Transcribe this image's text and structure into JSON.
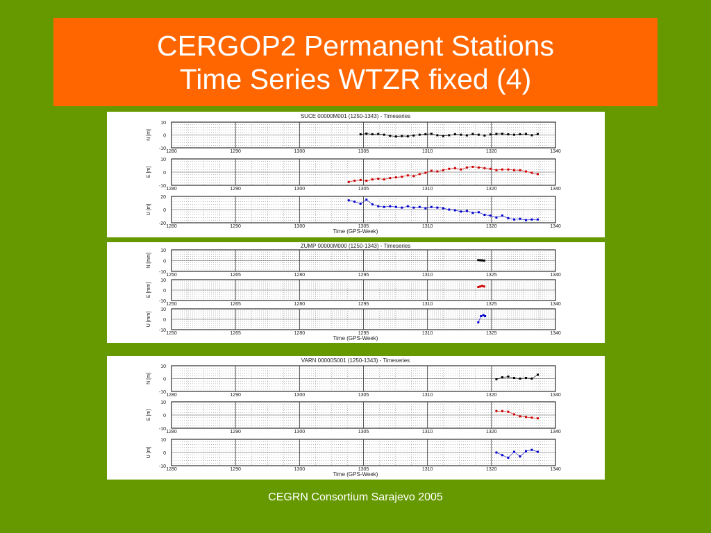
{
  "slide": {
    "title_line1": "CERGOP2 Permanent Stations",
    "title_line2": "Time Series WTZR fixed (4)",
    "footer": "CEGRN Consortium Sarajevo 2005"
  },
  "colors": {
    "background": "#669900",
    "title_box": "#FF6600",
    "north": "#000000",
    "east": "#cc0000",
    "up": "#0000cc"
  },
  "chart_data": [
    {
      "type": "scatter",
      "title": "SUCE 00000M001 (1250-1343) - Timeseries",
      "xlabel": "Time (GPS-Week)",
      "xlim": [
        1280,
        1345
      ],
      "xticks": [
        "1280",
        "1290",
        "1300",
        "1305",
        "1310",
        "1320",
        "1340"
      ],
      "panels": [
        {
          "ylabel": "N [m]",
          "ylim": [
            -10,
            10
          ],
          "yticks": [
            "10",
            "0",
            "-10"
          ],
          "series": [
            {
              "color": "#000000",
              "points": [
                [
                  1312,
                  0.5
                ],
                [
                  1313,
                  1
                ],
                [
                  1314,
                  0.6
                ],
                [
                  1315,
                  0.8
                ],
                [
                  1316,
                  0.2
                ],
                [
                  1317,
                  -0.6
                ],
                [
                  1318,
                  -1.2
                ],
                [
                  1319,
                  -0.8
                ],
                [
                  1320,
                  -1
                ],
                [
                  1321,
                  -0.4
                ],
                [
                  1322,
                  0.2
                ],
                [
                  1323,
                  0.6
                ],
                [
                  1324,
                  0.9
                ],
                [
                  1325,
                  -0.2
                ],
                [
                  1326,
                  -0.8
                ],
                [
                  1327,
                  -0.2
                ],
                [
                  1328,
                  0.6
                ],
                [
                  1329,
                  0.2
                ],
                [
                  1330,
                  -0.3
                ],
                [
                  1331,
                  0.8
                ],
                [
                  1332,
                  0.2
                ],
                [
                  1333,
                  -0.4
                ],
                [
                  1334,
                  0.4
                ],
                [
                  1335,
                  0.8
                ],
                [
                  1336,
                  0.9
                ],
                [
                  1337,
                  0.5
                ],
                [
                  1338,
                  0.2
                ],
                [
                  1339,
                  0.6
                ],
                [
                  1340,
                  0.8
                ],
                [
                  1341,
                  -0.2
                ],
                [
                  1342,
                  0.7
                ]
              ]
            }
          ]
        },
        {
          "ylabel": "E [m]",
          "ylim": [
            -10,
            10
          ],
          "yticks": [
            "10",
            "0",
            "-10"
          ],
          "series": [
            {
              "color": "#cc0000",
              "points": [
                [
                  1310,
                  -7.5
                ],
                [
                  1311,
                  -6.5
                ],
                [
                  1312,
                  -6
                ],
                [
                  1313,
                  -6.5
                ],
                [
                  1314,
                  -5.5
                ],
                [
                  1315,
                  -5
                ],
                [
                  1316,
                  -5.5
                ],
                [
                  1317,
                  -4.5
                ],
                [
                  1318,
                  -4
                ],
                [
                  1319,
                  -3.5
                ],
                [
                  1320,
                  -2.5
                ],
                [
                  1321,
                  -3
                ],
                [
                  1322,
                  -1.5
                ],
                [
                  1323,
                  -0.5
                ],
                [
                  1324,
                  1
                ],
                [
                  1325,
                  0.5
                ],
                [
                  1326,
                  1.5
                ],
                [
                  1327,
                  2.5
                ],
                [
                  1328,
                  3
                ],
                [
                  1329,
                  2
                ],
                [
                  1330,
                  3.5
                ],
                [
                  1331,
                  4
                ],
                [
                  1332,
                  3.5
                ],
                [
                  1333,
                  3
                ],
                [
                  1334,
                  2.5
                ],
                [
                  1335,
                  1.5
                ],
                [
                  1336,
                  2
                ],
                [
                  1337,
                  2
                ],
                [
                  1338,
                  1.5
                ],
                [
                  1339,
                  1.5
                ],
                [
                  1340,
                  0.5
                ],
                [
                  1341,
                  -0.5
                ],
                [
                  1342,
                  -1.5
                ]
              ]
            }
          ]
        },
        {
          "ylabel": "U [m]",
          "ylim": [
            -20,
            20
          ],
          "yticks": [
            "20",
            "0",
            "-20"
          ],
          "series": [
            {
              "color": "#0000cc",
              "points": [
                [
                  1310,
                  14
                ],
                [
                  1311,
                  12
                ],
                [
                  1312,
                  9
                ],
                [
                  1313,
                  15
                ],
                [
                  1314,
                  8
                ],
                [
                  1315,
                  5
                ],
                [
                  1316,
                  4
                ],
                [
                  1317,
                  5
                ],
                [
                  1318,
                  4
                ],
                [
                  1319,
                  3
                ],
                [
                  1320,
                  5
                ],
                [
                  1321,
                  3
                ],
                [
                  1322,
                  4
                ],
                [
                  1323,
                  2
                ],
                [
                  1324,
                  4
                ],
                [
                  1325,
                  3
                ],
                [
                  1326,
                  2
                ],
                [
                  1327,
                  0
                ],
                [
                  1328,
                  -1
                ],
                [
                  1329,
                  -3
                ],
                [
                  1330,
                  -2
                ],
                [
                  1331,
                  -5
                ],
                [
                  1332,
                  -4
                ],
                [
                  1333,
                  -8
                ],
                [
                  1334,
                  -9
                ],
                [
                  1335,
                  -12
                ],
                [
                  1336,
                  -9
                ],
                [
                  1337,
                  -13
                ],
                [
                  1338,
                  -15
                ],
                [
                  1339,
                  -14
                ],
                [
                  1340,
                  -16
                ],
                [
                  1341,
                  -15
                ],
                [
                  1342,
                  -15
                ]
              ]
            }
          ]
        }
      ]
    },
    {
      "type": "scatter",
      "title": "ZUMP 00000M000 (1250-1343) - Timeseries",
      "xlabel": "Time (GPS-Week)",
      "xlim": [
        1248,
        1345
      ],
      "xticks": [
        "1250",
        "1265",
        "1280",
        "1295",
        "1310",
        "1325",
        "1340"
      ],
      "panels": [
        {
          "ylabel": "N [mm]",
          "ylim": [
            -10,
            10
          ],
          "yticks": [
            "10",
            "0",
            "-10"
          ],
          "series": [
            {
              "color": "#000000",
              "points": [
                [
                  1325.5,
                  0.5
                ],
                [
                  1326,
                  0.3
                ],
                [
                  1326.5,
                  0.2
                ],
                [
                  1327,
                  0
                ]
              ]
            }
          ]
        },
        {
          "ylabel": "E [mm]",
          "ylim": [
            -10,
            10
          ],
          "yticks": [
            "10",
            "0",
            "-10"
          ],
          "series": [
            {
              "color": "#cc0000",
              "points": [
                [
                  1325.5,
                  3
                ],
                [
                  1326,
                  3.5
                ],
                [
                  1326.5,
                  4
                ],
                [
                  1327,
                  3.5
                ]
              ]
            }
          ]
        },
        {
          "ylabel": "U [mm]",
          "ylim": [
            -10,
            10
          ],
          "yticks": [
            "10",
            "0",
            "-10"
          ],
          "series": [
            {
              "color": "#0000cc",
              "points": [
                [
                  1325.5,
                  -3
                ],
                [
                  1326.2,
                  3
                ],
                [
                  1326.8,
                  4
                ],
                [
                  1327.2,
                  3
                ]
              ]
            }
          ]
        }
      ]
    },
    {
      "type": "scatter",
      "title": "VARN 00000S001 (1250-1343) - Timeseries",
      "xlabel": "Time (GPS-Week)",
      "xlim": [
        1280,
        1345
      ],
      "xticks": [
        "1280",
        "1290",
        "1300",
        "1305",
        "1310",
        "1320",
        "1340"
      ],
      "panels": [
        {
          "ylabel": "N [m]",
          "ylim": [
            -10,
            10
          ],
          "yticks": [
            "10",
            "0",
            "-10"
          ],
          "series": [
            {
              "color": "#000000",
              "points": [
                [
                  1335,
                  -0.5
                ],
                [
                  1336,
                  1
                ],
                [
                  1337,
                  1.5
                ],
                [
                  1338,
                  0.5
                ],
                [
                  1339,
                  0
                ],
                [
                  1340,
                  0.5
                ],
                [
                  1341,
                  0
                ],
                [
                  1342,
                  3
                ]
              ]
            }
          ]
        },
        {
          "ylabel": "E [m]",
          "ylim": [
            -10,
            10
          ],
          "yticks": [
            "10",
            "0",
            "-10"
          ],
          "series": [
            {
              "color": "#cc0000",
              "points": [
                [
                  1335,
                  3
                ],
                [
                  1336,
                  3
                ],
                [
                  1337,
                  2.5
                ],
                [
                  1338,
                  0.5
                ],
                [
                  1339,
                  -1
                ],
                [
                  1340,
                  -1.5
                ],
                [
                  1341,
                  -2
                ],
                [
                  1342,
                  -2.5
                ]
              ]
            }
          ]
        },
        {
          "ylabel": "U [m]",
          "ylim": [
            -10,
            10
          ],
          "yticks": [
            "10",
            "0",
            "-10"
          ],
          "series": [
            {
              "color": "#0000cc",
              "points": [
                [
                  1335,
                  0
                ],
                [
                  1336,
                  -2
                ],
                [
                  1337,
                  -4
                ],
                [
                  1338,
                  0.5
                ],
                [
                  1339,
                  -3
                ],
                [
                  1340,
                  1
                ],
                [
                  1341,
                  2
                ],
                [
                  1342,
                  0.5
                ]
              ]
            }
          ]
        }
      ]
    }
  ]
}
